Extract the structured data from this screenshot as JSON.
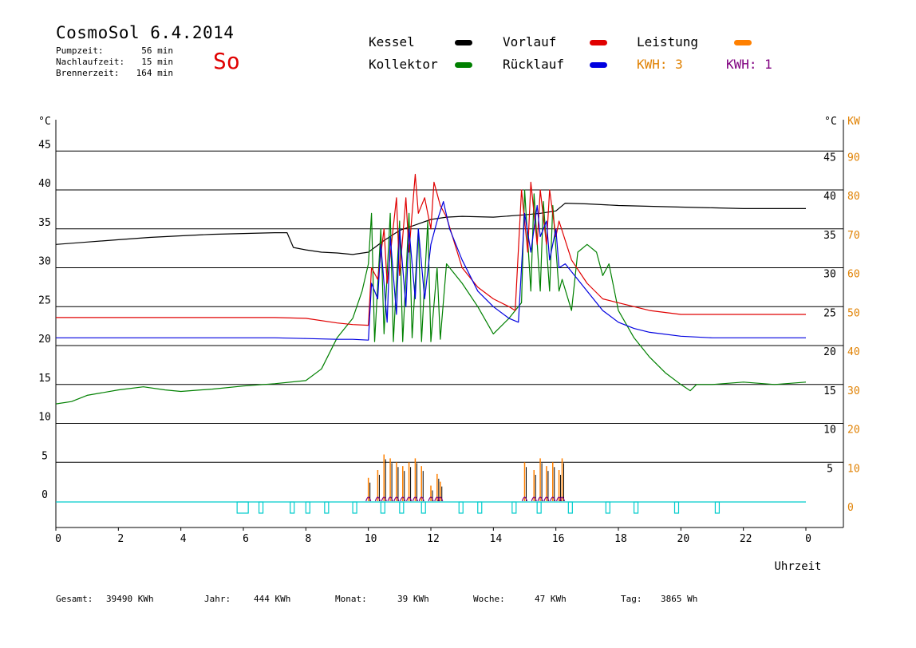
{
  "header": {
    "title": "CosmoSol 6.4.2014",
    "day_label": "So",
    "pumpzeit_label": "Pumpzeit:",
    "pumpzeit_value": "56 min",
    "nachlaufzeit_label": "Nachlaufzeit:",
    "nachlaufzeit_value": "15 min",
    "brennerzeit_label": "Brennerzeit:",
    "brennerzeit_value": "164 min"
  },
  "legend": {
    "kessel": "Kessel",
    "kollektor": "Kollektor",
    "vorlauf": "Vorlauf",
    "ruecklauf": "Rücklauf",
    "leistung": "Leistung",
    "kwh_a": "KWH: 3",
    "kwh_b": "KWH: 1"
  },
  "footer": {
    "gesamt_label": "Gesamt:",
    "gesamt_value": "39490 KWh",
    "jahr_label": "Jahr:",
    "jahr_value": "444 KWh",
    "monat_label": "Monat:",
    "monat_value": "39 KWh",
    "woche_label": "Woche:",
    "woche_value": "47 KWh",
    "tag_label": "Tag:",
    "tag_value": "3865 Wh"
  },
  "colors": {
    "kessel": "#000000",
    "kollektor": "#008000",
    "vorlauf": "#e00000",
    "ruecklauf": "#0000e0",
    "leistung": "#ff8000",
    "kwh_b": "#800080",
    "pump": "#00cccc",
    "kw_axis": "#e08000"
  },
  "chart_data": {
    "type": "line",
    "xlabel": "Uhrzeit",
    "ylabel_left": "°C",
    "ylabel_right": "°C",
    "ylabel_right2": "KW",
    "xlim": [
      0,
      24
    ],
    "ylim": [
      0,
      45
    ],
    "ylim_right2": [
      0,
      90
    ],
    "grid": true,
    "x_ticks": [
      "0",
      "2",
      "4",
      "6",
      "8",
      "10",
      "12",
      "14",
      "16",
      "18",
      "20",
      "22",
      "0"
    ],
    "y_ticks_left": [
      "0",
      "5",
      "10",
      "15",
      "20",
      "25",
      "30",
      "35",
      "40",
      "45"
    ],
    "y_ticks_right": [
      "5",
      "10",
      "15",
      "20",
      "25",
      "30",
      "35",
      "40",
      "45"
    ],
    "y_ticks_right2": [
      "0",
      "10",
      "20",
      "30",
      "40",
      "50",
      "60",
      "70",
      "80",
      "90"
    ],
    "series": [
      {
        "name": "Kessel",
        "color": "#000000",
        "x": [
          0,
          1,
          2,
          3,
          4,
          5,
          6,
          7,
          7.4,
          7.6,
          8,
          8.5,
          9,
          9.5,
          10,
          10.5,
          11,
          11.5,
          12,
          12.5,
          13,
          14,
          15,
          15.5,
          16,
          16.3,
          17,
          18,
          19,
          20,
          21,
          22,
          23,
          24
        ],
        "y": [
          33,
          33.3,
          33.6,
          33.9,
          34.1,
          34.3,
          34.4,
          34.5,
          34.5,
          32.6,
          32.3,
          32.0,
          31.9,
          31.7,
          32.0,
          33.5,
          34.8,
          35.5,
          36.2,
          36.5,
          36.6,
          36.5,
          36.8,
          37.0,
          37.3,
          38.3,
          38.2,
          38.0,
          37.9,
          37.8,
          37.7,
          37.6,
          37.6,
          37.6
        ]
      },
      {
        "name": "Kollektor",
        "color": "#008000",
        "x": [
          0,
          0.5,
          1,
          2,
          2.8,
          3.5,
          4,
          5,
          6,
          7,
          8,
          8.5,
          9,
          9.5,
          9.8,
          10,
          10.1,
          10.2,
          10.4,
          10.5,
          10.7,
          10.8,
          11,
          11.1,
          11.3,
          11.4,
          11.6,
          11.7,
          11.9,
          12,
          12.2,
          12.3,
          12.5,
          13,
          13.5,
          14,
          14.5,
          14.7,
          14.9,
          15,
          15.2,
          15.3,
          15.5,
          15.6,
          15.8,
          15.9,
          16.1,
          16.2,
          16.5,
          16.7,
          17,
          17.3,
          17.5,
          17.7,
          18,
          18.5,
          19,
          19.5,
          20,
          20.3,
          20.5,
          21,
          22,
          23,
          24
        ],
        "y": [
          12.5,
          12.8,
          13.6,
          14.3,
          14.7,
          14.3,
          14.1,
          14.4,
          14.8,
          15.1,
          15.5,
          17,
          21,
          23.5,
          27,
          30.5,
          37,
          20.5,
          35,
          21.5,
          37,
          20.5,
          36,
          20.5,
          37,
          21,
          35,
          20.5,
          36,
          20.5,
          30,
          20.8,
          30.5,
          28,
          25,
          21.5,
          23.5,
          24.5,
          25.5,
          40,
          27,
          39.5,
          27,
          38.5,
          27,
          38,
          27,
          28.5,
          24.5,
          32,
          33,
          32,
          29,
          30.5,
          24.5,
          21,
          18.5,
          16.5,
          15,
          14.2,
          15,
          15,
          15.3,
          15,
          15.3
        ]
      },
      {
        "name": "Vorlauf",
        "color": "#e00000",
        "x": [
          0,
          1,
          2,
          3,
          4,
          5,
          6,
          7,
          8,
          9,
          9.5,
          10,
          10.1,
          10.3,
          10.5,
          10.6,
          10.9,
          11.0,
          11.2,
          11.3,
          11.5,
          11.6,
          11.8,
          12.0,
          12.1,
          12.3,
          12.5,
          13,
          13.5,
          14,
          14.5,
          14.7,
          14.9,
          15.1,
          15.2,
          15.4,
          15.5,
          15.7,
          15.8,
          16.0,
          16.1,
          16.5,
          17,
          17.5,
          18,
          19,
          20,
          22,
          24
        ],
        "y": [
          23.6,
          23.6,
          23.6,
          23.6,
          23.6,
          23.6,
          23.6,
          23.6,
          23.5,
          22.9,
          22.7,
          22.6,
          30,
          28.5,
          35,
          28,
          39,
          29,
          39,
          32,
          42,
          37,
          39,
          35,
          41,
          38,
          36.5,
          30,
          27.5,
          26,
          25,
          24.5,
          40,
          32,
          41,
          33,
          40,
          33,
          40,
          34,
          36,
          31,
          28,
          26,
          25.5,
          24.5,
          24,
          24,
          24
        ]
      },
      {
        "name": "Rücklauf",
        "color": "#0000e0",
        "x": [
          0,
          1,
          2,
          3,
          4,
          5,
          6,
          7,
          8,
          9,
          9.5,
          10,
          10.1,
          10.3,
          10.4,
          10.6,
          10.7,
          10.9,
          11.0,
          11.2,
          11.3,
          11.5,
          11.6,
          11.8,
          12.0,
          12.2,
          12.4,
          12.6,
          13,
          13.5,
          14,
          14.5,
          14.8,
          15.0,
          15.2,
          15.4,
          15.5,
          15.7,
          15.8,
          16.0,
          16.1,
          16.3,
          17,
          17.5,
          18,
          18.5,
          19,
          20,
          21,
          22,
          24
        ],
        "y": [
          21,
          21,
          21,
          21,
          21,
          21,
          21,
          21,
          20.9,
          20.8,
          20.8,
          20.7,
          28,
          26,
          33,
          23,
          34,
          24,
          35,
          25,
          35,
          26,
          35,
          26,
          33,
          36,
          38.5,
          35,
          31,
          27,
          25,
          23.5,
          23,
          37,
          32,
          38,
          34,
          36,
          31,
          35,
          30,
          30.5,
          27,
          24.5,
          23,
          22.2,
          21.7,
          21.2,
          21,
          21,
          21
        ]
      }
    ],
    "pump_pulses_h": [
      5.8,
      6.5,
      7.5,
      8.0,
      8.6,
      9.5,
      10.4,
      11.0,
      11.7,
      12.9,
      13.5,
      14.6,
      15.4,
      16.4,
      17.6,
      18.5,
      19.8,
      21.1
    ],
    "kw_spikes_h": [
      10.0,
      10.3,
      10.5,
      10.7,
      10.9,
      11.1,
      11.3,
      11.5,
      11.7,
      12.0,
      12.2,
      12.3,
      15.0,
      15.3,
      15.5,
      15.7,
      15.9,
      16.1,
      16.2
    ],
    "kw_spikes_kw": [
      6,
      8,
      12,
      11,
      10,
      9,
      10,
      11,
      9,
      4,
      7,
      5,
      10,
      8,
      11,
      9,
      10,
      8,
      11
    ]
  }
}
